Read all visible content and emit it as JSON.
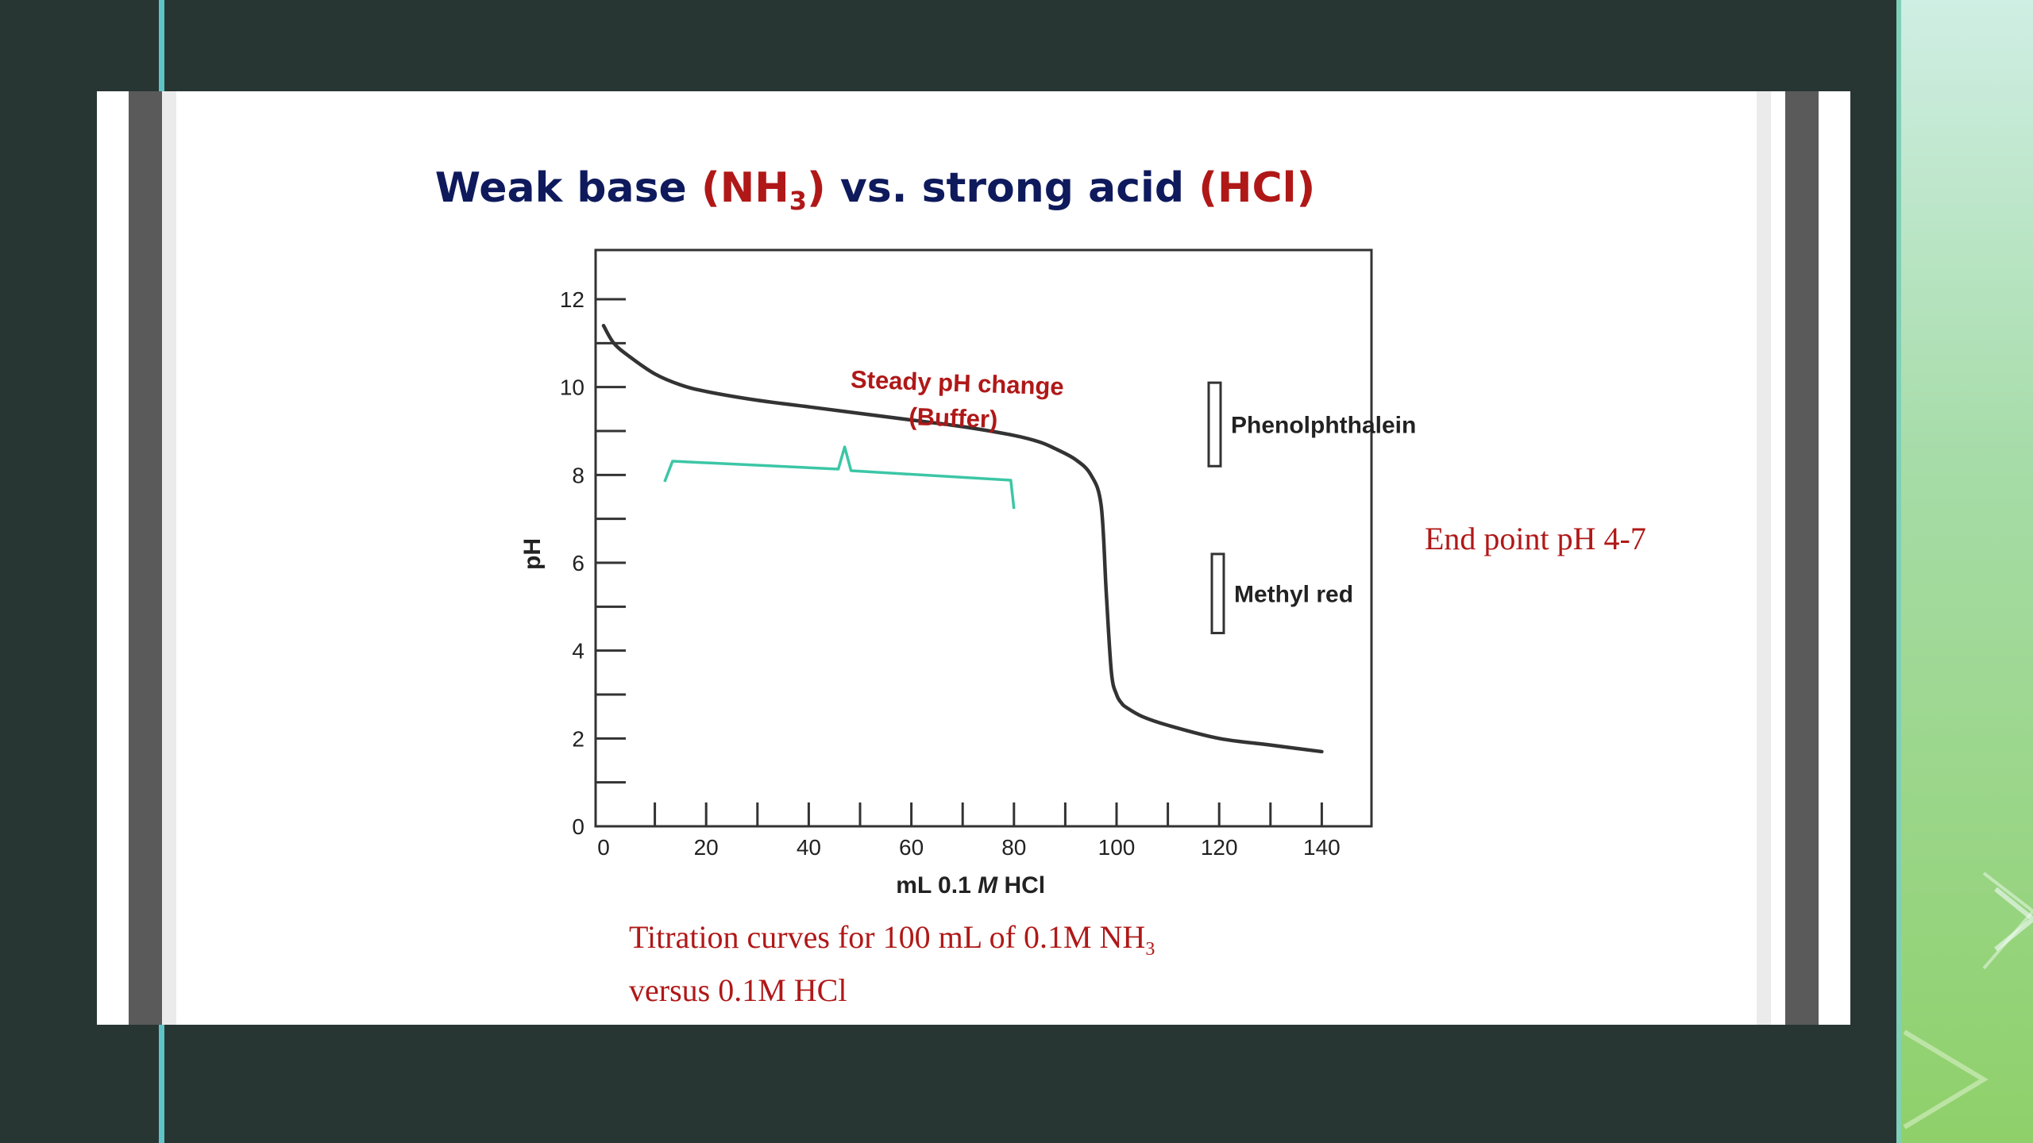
{
  "slide": {
    "title_part1": "Weak base ",
    "title_part2": "(NH",
    "title_sub": "3",
    "title_part3": ")",
    "title_part4": " vs. strong acid ",
    "title_part5": "(HCl)",
    "end_point": "End point pH 4-7",
    "caption_line1": "Titration curves for 100 mL of 0.1M NH",
    "caption_sub": "3",
    "caption_line2": "versus 0.1M HCl"
  },
  "colors": {
    "title_blue": "#0e1a5c",
    "accent_red": "#b01818",
    "brace_teal": "#3cc6a6",
    "curve": "#333333"
  },
  "chart_data": {
    "type": "line",
    "xlabel_pre": "mL 0.1 ",
    "xlabel_italic": "M",
    "xlabel_post": " HCl",
    "ylabel": "pH",
    "xlim": [
      0,
      150
    ],
    "ylim": [
      0,
      13
    ],
    "x_tick_labels": [
      "0",
      "20",
      "40",
      "60",
      "80",
      "100",
      "120",
      "140"
    ],
    "y_tick_labels": [
      "0",
      "2",
      "4",
      "6",
      "8",
      "10",
      "12"
    ],
    "series": [
      {
        "x": [
          0,
          2,
          5,
          10,
          15,
          20,
          30,
          40,
          50,
          60,
          70,
          80,
          85,
          88,
          92,
          95,
          97,
          98,
          99,
          100,
          101,
          102,
          105,
          110,
          120,
          130,
          140
        ],
        "y": [
          11.4,
          11.0,
          10.7,
          10.3,
          10.05,
          9.9,
          9.7,
          9.55,
          9.4,
          9.25,
          9.1,
          8.9,
          8.75,
          8.6,
          8.35,
          8.0,
          7.3,
          5.3,
          3.5,
          3.0,
          2.8,
          2.7,
          2.5,
          2.3,
          2.0,
          1.85,
          1.7
        ]
      }
    ],
    "annotations": {
      "buffer_line1": "Steady pH change",
      "buffer_line2": "(Buffer)",
      "buffer_range": [
        15,
        80
      ],
      "indicators": [
        {
          "name": "Phenolphthalein",
          "range": [
            8.2,
            10.1
          ]
        },
        {
          "name": "Methyl red",
          "range": [
            4.4,
            6.2
          ]
        }
      ]
    },
    "grid": false
  }
}
